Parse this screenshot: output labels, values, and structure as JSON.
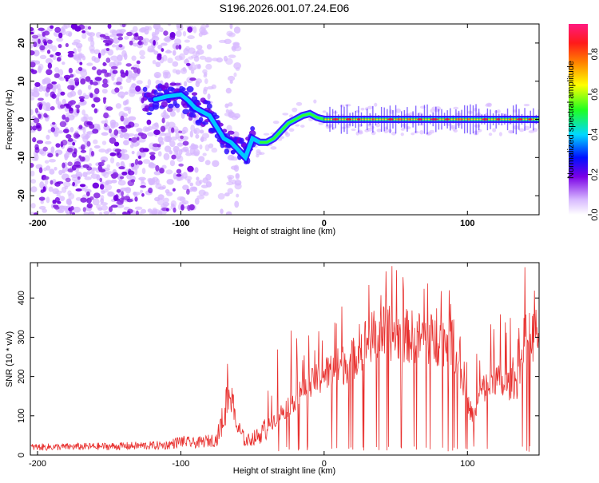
{
  "title": "S196.2026.001.07.24.E06",
  "chart_data": [
    {
      "type": "heatmap",
      "panel": "spectrogram",
      "xlabel": "Height of straight line (km)",
      "ylabel": "Frequency (Hz)",
      "xlim": [
        -205,
        150
      ],
      "ylim": [
        -25,
        25
      ],
      "xticks": [
        -200,
        -100,
        0,
        100
      ],
      "yticks": [
        -20,
        -10,
        0,
        10,
        20
      ],
      "colorbar": {
        "label": "Normalized spectral amplitude",
        "range": [
          0,
          0.95
        ],
        "ticks": [
          "0.0",
          "0.2",
          "0.4",
          "0.6",
          "0.8"
        ],
        "tick_values": [
          0,
          0.2,
          0.4,
          0.6,
          0.8
        ]
      },
      "ridge": {
        "x": [
          -120,
          -110,
          -100,
          -95,
          -90,
          -85,
          -80,
          -75,
          -70,
          -65,
          -60,
          -55,
          -50,
          -45,
          -40,
          -35,
          -30,
          -25,
          -20,
          -15,
          -10,
          -5,
          0,
          20,
          50,
          80,
          100,
          120,
          150
        ],
        "y": [
          5,
          6,
          6.5,
          5,
          3,
          2,
          1,
          -2,
          -5,
          -6,
          -8,
          -10,
          -5,
          -6,
          -6,
          -5,
          -3,
          -1,
          0,
          1,
          1.5,
          0.5,
          0,
          0,
          0,
          0,
          0,
          0,
          0
        ]
      },
      "noise_range": [
        -205,
        -60
      ]
    },
    {
      "type": "line",
      "panel": "snr",
      "xlabel": "Height of straight line (km)",
      "ylabel": "SNR (10 * v/v)",
      "xlim": [
        -205,
        150
      ],
      "ylim": [
        0,
        490
      ],
      "xticks": [
        -200,
        -100,
        0,
        100
      ],
      "yticks": [
        0,
        100,
        200,
        300,
        400
      ],
      "color": "#e8302e",
      "envelope": {
        "x": [
          -205,
          -150,
          -110,
          -100,
          -90,
          -75,
          -70,
          -67,
          -62,
          -55,
          -45,
          -38,
          -30,
          -20,
          -10,
          0,
          10,
          20,
          30,
          40,
          60,
          80,
          90,
          100,
          105,
          110,
          120,
          125,
          135,
          140,
          150
        ],
        "y": [
          20,
          22,
          25,
          35,
          30,
          40,
          100,
          180,
          80,
          35,
          50,
          80,
          110,
          150,
          180,
          210,
          230,
          250,
          300,
          320,
          310,
          300,
          300,
          130,
          100,
          170,
          200,
          180,
          190,
          300,
          320
        ]
      }
    }
  ]
}
